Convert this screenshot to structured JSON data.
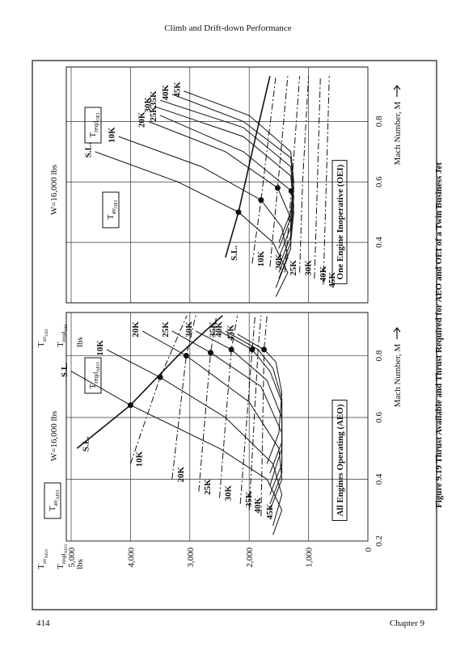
{
  "header": {
    "title": "Climb and Drift-down Performance"
  },
  "footer": {
    "page": "414",
    "chapter": "Chapter 9"
  },
  "caption": "Figure 9.19 Thrust Available and Thrust Required for AEO and OEI of a Twin Business Jet",
  "chart_data": [
    {
      "type": "line",
      "title": "W=16,000 lbs",
      "panel_label": "All Engines Operating (AEO)",
      "x_label": "Mach Number, M",
      "y_label": [
        {
          "base": "T",
          "sub": "av",
          "subsub": "AEO"
        },
        {
          "base": "T",
          "sub": "reqd",
          "subsub": "AEO"
        },
        {
          "base": "lbs"
        }
      ],
      "annotations": [
        {
          "base": "T",
          "sub": "av",
          "subsub": "AEO"
        },
        {
          "base": "T",
          "sub": "reqd",
          "subsub": "AEO"
        }
      ],
      "xlim": [
        0.2,
        0.94
      ],
      "xticks": [
        0.2,
        0.4,
        0.6,
        0.8
      ],
      "ylim": [
        0,
        5000
      ],
      "yticks": [
        0,
        {
          "value": 1000,
          "label": "1,000"
        },
        {
          "value": 2000,
          "label": "2,000"
        },
        {
          "value": 3000,
          "label": "3,000"
        },
        {
          "value": 4000,
          "label": "4,000"
        },
        {
          "value": 5000,
          "label": "5,000"
        }
      ],
      "grid": true,
      "color": "#111111",
      "series": [
        {
          "name": "S.L.",
          "kind": "available",
          "style": "solid",
          "x": [
            0.5,
            0.64,
            0.8,
            0.93
          ],
          "values": [
            4900,
            4000,
            3200,
            2450
          ]
        },
        {
          "name": "10K",
          "kind": "available",
          "style": "dashed",
          "x": [
            0.45,
            0.73,
            0.93
          ],
          "values": [
            4000,
            3500,
            3050
          ]
        },
        {
          "name": "20K",
          "kind": "available",
          "style": "dashed",
          "x": [
            0.4,
            0.8,
            0.93
          ],
          "values": [
            3300,
            3060,
            2900
          ]
        },
        {
          "name": "25K",
          "kind": "available",
          "style": "dashed",
          "x": [
            0.36,
            0.81,
            0.93
          ],
          "values": [
            2850,
            2650,
            2550
          ]
        },
        {
          "name": "30K",
          "kind": "available",
          "style": "dashed",
          "x": [
            0.34,
            0.82,
            0.93
          ],
          "values": [
            2500,
            2300,
            2200
          ]
        },
        {
          "name": "35K",
          "kind": "available",
          "style": "dashed",
          "x": [
            0.32,
            0.82,
            0.93
          ],
          "values": [
            2150,
            1950,
            1900
          ]
        },
        {
          "name": "40K",
          "kind": "available",
          "style": "dashed",
          "x": [
            0.3,
            0.82,
            0.93
          ],
          "values": [
            2000,
            1850,
            1800
          ]
        },
        {
          "name": "45K",
          "kind": "available",
          "style": "dashed",
          "x": [
            0.28,
            0.82,
            0.93
          ],
          "values": [
            1800,
            1750,
            1700
          ]
        },
        {
          "name": "S.L.",
          "kind": "required",
          "style": "solid",
          "x": [
            0.22,
            0.3,
            0.4,
            0.5,
            0.64,
            0.75
          ],
          "values": [
            1600,
            1450,
            1700,
            2500,
            4000,
            5000
          ]
        },
        {
          "name": "10K",
          "kind": "required",
          "style": "solid",
          "x": [
            0.25,
            0.35,
            0.45,
            0.6,
            0.73,
            0.82
          ],
          "values": [
            1600,
            1450,
            1600,
            2400,
            3500,
            4400
          ]
        },
        {
          "name": "20K",
          "kind": "required",
          "style": "solid",
          "x": [
            0.3,
            0.4,
            0.5,
            0.65,
            0.8,
            0.88
          ],
          "values": [
            1650,
            1450,
            1500,
            2000,
            3060,
            3800
          ]
        },
        {
          "name": "25K",
          "kind": "required",
          "style": "solid",
          "x": [
            0.32,
            0.42,
            0.55,
            0.7,
            0.81,
            0.88
          ],
          "values": [
            1650,
            1450,
            1450,
            1800,
            2650,
            3300
          ]
        },
        {
          "name": "30K",
          "kind": "required",
          "style": "solid",
          "x": [
            0.35,
            0.45,
            0.6,
            0.72,
            0.82,
            0.88
          ],
          "values": [
            1650,
            1450,
            1450,
            1700,
            2300,
            2900
          ]
        },
        {
          "name": "35K",
          "kind": "required",
          "style": "solid",
          "x": [
            0.38,
            0.5,
            0.65,
            0.75,
            0.82,
            0.88
          ],
          "values": [
            1650,
            1450,
            1450,
            1650,
            1950,
            2500
          ]
        },
        {
          "name": "40K",
          "kind": "required",
          "style": "solid",
          "x": [
            0.42,
            0.52,
            0.66,
            0.76,
            0.82,
            0.88
          ],
          "values": [
            1650,
            1450,
            1450,
            1600,
            1850,
            2400
          ]
        },
        {
          "name": "45K",
          "kind": "required",
          "style": "solid",
          "x": [
            0.45,
            0.55,
            0.68,
            0.78,
            0.82,
            0.87
          ],
          "values": [
            1700,
            1500,
            1450,
            1550,
            1750,
            2200
          ]
        }
      ],
      "markers": {
        "x": [
          0.64,
          0.73,
          0.8,
          0.81,
          0.82,
          0.82,
          0.82
        ],
        "values": [
          4000,
          3500,
          3060,
          2650,
          2300,
          1950,
          1750
        ]
      }
    },
    {
      "type": "line",
      "title": "W=16,000 lbs",
      "panel_label": "One Engine Inoperative (OEI)",
      "x_label": "Mach Number, M",
      "y_label": [
        {
          "base": "T",
          "sub": "av",
          "subsub": "OEI"
        },
        {
          "base": "T",
          "sub": "reqd",
          "subsub": "OEI"
        },
        {
          "base": "lbs"
        }
      ],
      "annotations": [
        {
          "base": "T",
          "sub": "av",
          "subsub": "OEI"
        },
        {
          "base": "T",
          "sub": "reqd",
          "subsub": "OEI"
        }
      ],
      "xlim": [
        0.2,
        0.98
      ],
      "xticks": [
        0.4,
        0.6,
        0.8
      ],
      "ylim": [
        0,
        5000
      ],
      "grid": true,
      "color": "#111111",
      "series": [
        {
          "name": "S.L.",
          "kind": "available",
          "style": "solid",
          "x": [
            0.35,
            0.5,
            0.7,
            0.95
          ],
          "values": [
            2400,
            2180,
            1950,
            1650
          ]
        },
        {
          "name": "10K",
          "kind": "available",
          "style": "dashed",
          "x": [
            0.33,
            0.54,
            0.95
          ],
          "values": [
            1950,
            1800,
            1550
          ]
        },
        {
          "name": "20K",
          "kind": "available",
          "style": "dashed",
          "x": [
            0.32,
            0.58,
            0.95
          ],
          "values": [
            1650,
            1520,
            1350
          ]
        },
        {
          "name": "25K",
          "kind": "available",
          "style": "dashed",
          "x": [
            0.3,
            0.57,
            0.95
          ],
          "values": [
            1400,
            1290,
            1150
          ]
        },
        {
          "name": "30K",
          "kind": "available",
          "style": "dashed",
          "x": [
            0.3,
            0.6,
            0.95
          ],
          "values": [
            1150,
            1100,
            1000
          ]
        },
        {
          "name": "40K",
          "kind": "available",
          "style": "dashed",
          "x": [
            0.28,
            0.6,
            0.95
          ],
          "values": [
            900,
            850,
            800
          ]
        },
        {
          "name": "45K",
          "kind": "available",
          "style": "dashed",
          "x": [
            0.26,
            0.6,
            0.95
          ],
          "values": [
            750,
            700,
            650
          ]
        },
        {
          "name": "S.L.",
          "kind": "required",
          "style": "solid",
          "x": [
            0.22,
            0.3,
            0.4,
            0.5,
            0.6,
            0.7
          ],
          "values": [
            1550,
            1350,
            1600,
            2180,
            3200,
            4600
          ]
        },
        {
          "name": "10K",
          "kind": "required",
          "style": "solid",
          "x": [
            0.25,
            0.35,
            0.45,
            0.54,
            0.65,
            0.75
          ],
          "values": [
            1550,
            1350,
            1450,
            1800,
            2800,
            4200
          ]
        },
        {
          "name": "20K",
          "kind": "required",
          "style": "solid",
          "x": [
            0.28,
            0.38,
            0.48,
            0.58,
            0.7,
            0.8
          ],
          "values": [
            1500,
            1300,
            1300,
            1520,
            2400,
            3700
          ]
        },
        {
          "name": "25K",
          "kind": "required",
          "style": "solid",
          "x": [
            0.3,
            0.4,
            0.5,
            0.57,
            0.7,
            0.82
          ],
          "values": [
            1500,
            1300,
            1250,
            1290,
            2100,
            3500
          ]
        },
        {
          "name": "30K",
          "kind": "required",
          "style": "solid",
          "x": [
            0.32,
            0.42,
            0.52,
            0.62,
            0.75,
            0.85
          ],
          "values": [
            1500,
            1300,
            1250,
            1300,
            2100,
            3600
          ]
        },
        {
          "name": "35K",
          "kind": "required",
          "style": "solid",
          "x": [
            0.35,
            0.45,
            0.55,
            0.65,
            0.78,
            0.87
          ],
          "values": [
            1500,
            1300,
            1250,
            1300,
            2100,
            3500
          ]
        },
        {
          "name": "40K",
          "kind": "required",
          "style": "solid",
          "x": [
            0.38,
            0.48,
            0.58,
            0.68,
            0.8,
            0.89
          ],
          "values": [
            1500,
            1300,
            1250,
            1300,
            2100,
            3300
          ]
        },
        {
          "name": "45K",
          "kind": "required",
          "style": "solid",
          "x": [
            0.4,
            0.5,
            0.6,
            0.7,
            0.82,
            0.9
          ],
          "values": [
            1500,
            1300,
            1250,
            1300,
            2000,
            3100
          ]
        }
      ],
      "markers": {
        "x": [
          0.5,
          0.54,
          0.58,
          0.57
        ],
        "values": [
          2180,
          1800,
          1520,
          1290
        ]
      }
    }
  ]
}
